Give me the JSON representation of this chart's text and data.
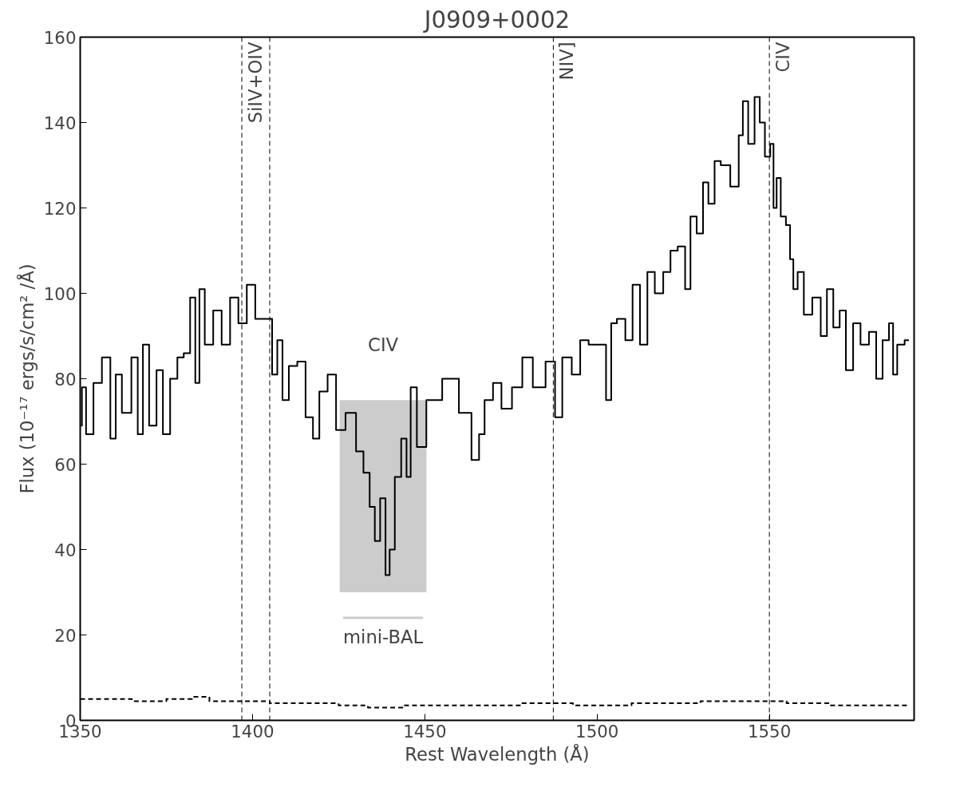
{
  "chart_data": {
    "type": "step",
    "title": "J0909+0002",
    "xlabel": "Rest Wavelength (Å)",
    "ylabel": "Flux (10⁻¹⁷ ergs/s/cm² /Å)",
    "xlim": [
      1350,
      1592
    ],
    "ylim": [
      0,
      160
    ],
    "xticks": [
      1350,
      1400,
      1450,
      1500,
      1550
    ],
    "yticks": [
      0,
      20,
      40,
      60,
      80,
      100,
      120,
      140,
      160
    ],
    "grid": false,
    "series": [
      {
        "color": "#000000",
        "line_style": "solid",
        "x": [
          1350.2,
          1350.8,
          1352.6,
          1355.1,
          1357.5,
          1360.0,
          1360.6,
          1363.6,
          1366.1,
          1367.3,
          1369.1,
          1370.9,
          1373.4,
          1374.6,
          1377.6,
          1378.8,
          1381.3,
          1382.5,
          1384.3,
          1384.9,
          1387.4,
          1389.8,
          1392.3,
          1394.7,
          1397.1,
          1399.6,
          1402.0,
          1405.1,
          1406.3,
          1408.1,
          1409.3,
          1411.8,
          1414.2,
          1416.6,
          1418.5,
          1420.3,
          1423.3,
          1425.2,
          1428.8,
          1431.3,
          1433.1,
          1434.9,
          1436.1,
          1438.0,
          1439.2,
          1440.4,
          1442.2,
          1444.1,
          1445.3,
          1446.5,
          1448.9,
          1452.0,
          1458.1,
          1461.7,
          1465.4,
          1466.1,
          1468.6,
          1471.0,
          1473.5,
          1477.1,
          1479.5,
          1483.2,
          1486.9,
          1488.7,
          1491.1,
          1494.2,
          1496.0,
          1499.1,
          1501.5,
          1503.7,
          1504.5,
          1507.0,
          1509.4,
          1511.2,
          1513.7,
          1515.5,
          1518.0,
          1520.4,
          1522.2,
          1524.6,
          1526.5,
          1527.7,
          1530.1,
          1531.4,
          1533.2,
          1535.0,
          1536.8,
          1540.5,
          1541.7,
          1542.9,
          1544.8,
          1546.6,
          1547.8,
          1549.6,
          1550.9,
          1551.5,
          1552.7,
          1553.9,
          1555.7,
          1556.3,
          1557.6,
          1558.8,
          1561.2,
          1563.7,
          1566.1,
          1567.3,
          1569.8,
          1571.0,
          1573.4,
          1575.2,
          1577.7,
          1580.1,
          1581.9,
          1583.8,
          1585.6,
          1586.2,
          1588.0,
          1590.5
        ],
        "values": [
          69,
          78,
          67,
          79,
          85,
          66,
          81,
          72,
          85,
          67,
          88,
          69,
          82,
          67,
          80,
          85,
          86,
          99,
          79,
          101,
          88,
          96,
          88,
          99,
          93,
          102,
          94,
          94,
          81,
          89,
          75,
          83,
          84,
          71,
          66,
          77,
          81,
          68,
          72,
          63,
          58,
          50,
          42,
          52,
          34,
          40,
          57,
          66,
          57,
          78,
          64,
          75,
          80,
          72,
          61,
          67,
          75,
          79,
          73,
          78,
          85,
          78,
          84,
          71,
          85,
          81,
          89,
          88,
          88,
          75,
          93,
          94,
          89,
          102,
          88,
          105,
          100,
          105,
          110,
          111,
          101,
          118,
          114,
          126,
          121,
          131,
          130,
          125,
          137,
          145,
          135,
          146,
          140,
          132,
          135,
          120,
          127,
          118,
          116,
          108,
          101,
          105,
          95,
          99,
          90,
          101,
          92,
          96,
          82,
          93,
          88,
          91,
          80,
          89,
          93,
          81,
          88,
          89
        ]
      },
      {
        "color": "#000000",
        "line_style": "dashed",
        "x": [
          1350,
          1360,
          1370,
          1380,
          1385,
          1390,
          1400,
          1410,
          1420,
          1430,
          1437,
          1450,
          1470,
          1486,
          1500,
          1520,
          1540,
          1550,
          1560,
          1575,
          1590
        ],
        "values": [
          5,
          5,
          4.5,
          5,
          5.5,
          4.5,
          4.5,
          4,
          4,
          3.5,
          3,
          3.5,
          3.5,
          4,
          3.5,
          4,
          4.5,
          4.5,
          4,
          3.5,
          3.5
        ]
      }
    ],
    "ref_lines": [
      {
        "axis": "x",
        "value": 1396.9,
        "label": "SiIV+OIV",
        "color": "#000000",
        "line_style": "dashed"
      },
      {
        "axis": "x",
        "value": 1405,
        "label": null,
        "color": "#000000",
        "line_style": "dashed"
      },
      {
        "axis": "x",
        "value": 1487.3,
        "label": "NIV]",
        "color": "#000000",
        "line_style": "dashed"
      },
      {
        "axis": "x",
        "value": 1550,
        "label": "CIV",
        "color": "#000000",
        "line_style": "dashed"
      }
    ],
    "bands": [
      {
        "axis": "x",
        "from": 1425.3,
        "to": 1450.5,
        "label": "mini-BAL",
        "color": "#cccccc"
      }
    ],
    "annotations": [
      "CIV"
    ]
  }
}
